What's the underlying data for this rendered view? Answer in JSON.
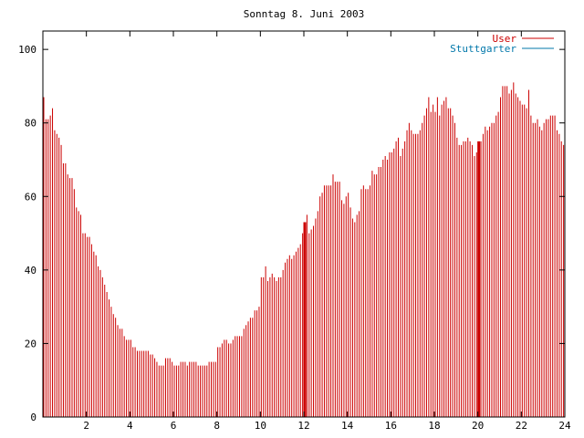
{
  "chart_data": {
    "type": "bar",
    "title": "Sonntag 8. Juni 2003",
    "xlabel": "",
    "ylabel": "",
    "xlim": [
      0,
      24
    ],
    "ylim": [
      0,
      105
    ],
    "x_ticks": [
      2,
      4,
      6,
      8,
      10,
      12,
      14,
      16,
      18,
      20,
      22,
      24
    ],
    "y_ticks": [
      0,
      20,
      40,
      60,
      80,
      100
    ],
    "grid": false,
    "legend_position": "top-right",
    "colors": {
      "User": "#cc0000",
      "Stuttgarter": "#0077aa",
      "axis": "#000000"
    },
    "series": [
      {
        "name": "User",
        "step_hours": 0.1,
        "highlight_x": [
          12.0,
          20.0
        ],
        "values": [
          87,
          81,
          81,
          82,
          84,
          78,
          77,
          76,
          74,
          69,
          69,
          66,
          65,
          65,
          62,
          57,
          56,
          55,
          50,
          50,
          49,
          49,
          47,
          45,
          44,
          41,
          40,
          38,
          36,
          34,
          32,
          30,
          28,
          27,
          25,
          24,
          24,
          22,
          21,
          21,
          21,
          19,
          19,
          18,
          18,
          18,
          18,
          18,
          18,
          17,
          17,
          16,
          15,
          14,
          14,
          14,
          16,
          16,
          16,
          15,
          14,
          14,
          14,
          15,
          15,
          15,
          14,
          15,
          15,
          15,
          15,
          14,
          14,
          14,
          14,
          14,
          15,
          15,
          15,
          15,
          19,
          19,
          20,
          21,
          21,
          20,
          20,
          21,
          22,
          22,
          22,
          22,
          24,
          25,
          26,
          27,
          27,
          29,
          29,
          30,
          38,
          38,
          41,
          37,
          38,
          39,
          38,
          37,
          38,
          38,
          40,
          42,
          43,
          44,
          43,
          44,
          45,
          46,
          47,
          50,
          53,
          55,
          50,
          51,
          52,
          54,
          56,
          60,
          61,
          63,
          63,
          63,
          63,
          66,
          64,
          64,
          64,
          59,
          58,
          60,
          61,
          57,
          54,
          53,
          55,
          56,
          62,
          63,
          62,
          62,
          63,
          67,
          66,
          66,
          68,
          68,
          70,
          71,
          70,
          72,
          72,
          73,
          75,
          76,
          71,
          73,
          75,
          78,
          80,
          78,
          77,
          77,
          77,
          78,
          80,
          82,
          84,
          87,
          83,
          85,
          83,
          87,
          82,
          85,
          86,
          87,
          84,
          84,
          82,
          80,
          76,
          74,
          74,
          75,
          75,
          76,
          75,
          74,
          71,
          72,
          75,
          75,
          77,
          79,
          78,
          79,
          80,
          80,
          82,
          83,
          87,
          90,
          90,
          90,
          88,
          89,
          91,
          88,
          87,
          86,
          85,
          85,
          84,
          89,
          82,
          80,
          80,
          81,
          79,
          78,
          80,
          81,
          81,
          82,
          82,
          82,
          78,
          77,
          75,
          74
        ]
      },
      {
        "name": "Stuttgarter",
        "values": []
      }
    ]
  }
}
